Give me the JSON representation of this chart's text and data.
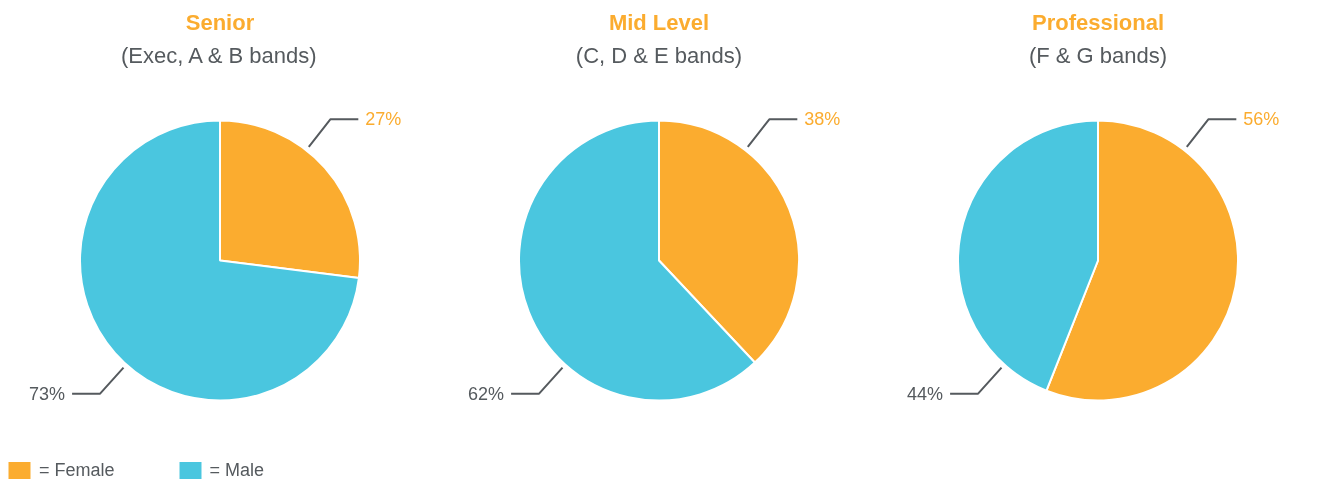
{
  "chart_data": [
    {
      "type": "pie",
      "title": "Senior",
      "subtitle": "(Exec, A & B bands)",
      "categories": [
        "= Female",
        "= Male"
      ],
      "values": [
        27,
        73
      ],
      "colors": [
        "#fbac2f",
        "#4ac6df"
      ],
      "value_labels": [
        "27%",
        "73%"
      ],
      "legend": "bottom left"
    },
    {
      "type": "pie",
      "title": "Mid Level",
      "subtitle": "(C, D & E bands)",
      "categories": [
        null,
        null
      ],
      "values": [
        38,
        62
      ],
      "colors": [
        "#fbac2f",
        "#4ac6df"
      ],
      "value_labels": [
        "38%",
        "62%"
      ]
    },
    {
      "type": "pie",
      "title": "Professional",
      "subtitle": "(F & G bands)",
      "categories": [
        null,
        null
      ],
      "values": [
        56,
        44
      ],
      "colors": [
        "#fbac2f",
        "#4ac6df"
      ],
      "value_labels": [
        "56%",
        "44%"
      ]
    }
  ]
}
